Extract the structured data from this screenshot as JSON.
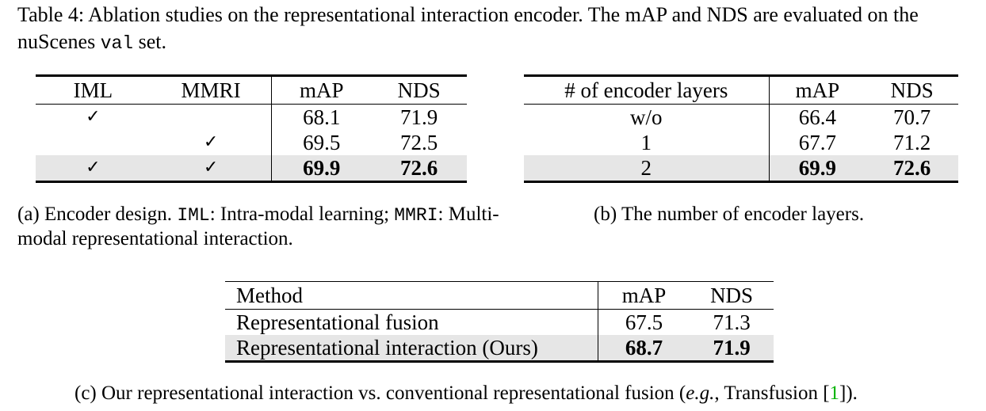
{
  "caption": {
    "label": "Table 4:",
    "text_before": "Ablation studies on the representational interaction encoder. The mAP and NDS are evaluated on the nuScenes",
    "code": "val",
    "text_after": "set."
  },
  "table_a": {
    "headers": [
      "IML",
      "MMRI",
      "mAP",
      "NDS"
    ],
    "check_mark": "✓",
    "rows": [
      {
        "iml": "✓",
        "mmri": "",
        "map": "68.1",
        "nds": "71.9"
      },
      {
        "iml": "",
        "mmri": "✓",
        "map": "69.5",
        "nds": "72.5"
      },
      {
        "iml": "✓",
        "mmri": "✓",
        "map": "69.9",
        "nds": "72.6"
      }
    ],
    "caption": {
      "label": "(a) Encoder design.",
      "code1": "IML",
      "text1": ": Intra-modal learning;",
      "code2": "MMRI",
      "text2": ": Multi-modal representational interaction."
    }
  },
  "table_b": {
    "headers": [
      "# of encoder layers",
      "mAP",
      "NDS"
    ],
    "rows": [
      {
        "layers": "w/o",
        "map": "66.4",
        "nds": "70.7"
      },
      {
        "layers": "1",
        "map": "67.7",
        "nds": "71.2"
      },
      {
        "layers": "2",
        "map": "69.9",
        "nds": "72.6"
      }
    ],
    "caption": "(b) The number of encoder layers."
  },
  "table_c": {
    "headers": [
      "Method",
      "mAP",
      "NDS"
    ],
    "rows": [
      {
        "method": "Representational fusion",
        "map": "67.5",
        "nds": "71.3"
      },
      {
        "method": "Representational interaction (Ours)",
        "map": "68.7",
        "nds": "71.9"
      }
    ],
    "caption": {
      "text": "(c) Our representational interaction vs. conventional representational fusion (",
      "eg": "e.g.",
      "text2": ", Transfusion [",
      "cite": "1",
      "text3": "])."
    }
  }
}
